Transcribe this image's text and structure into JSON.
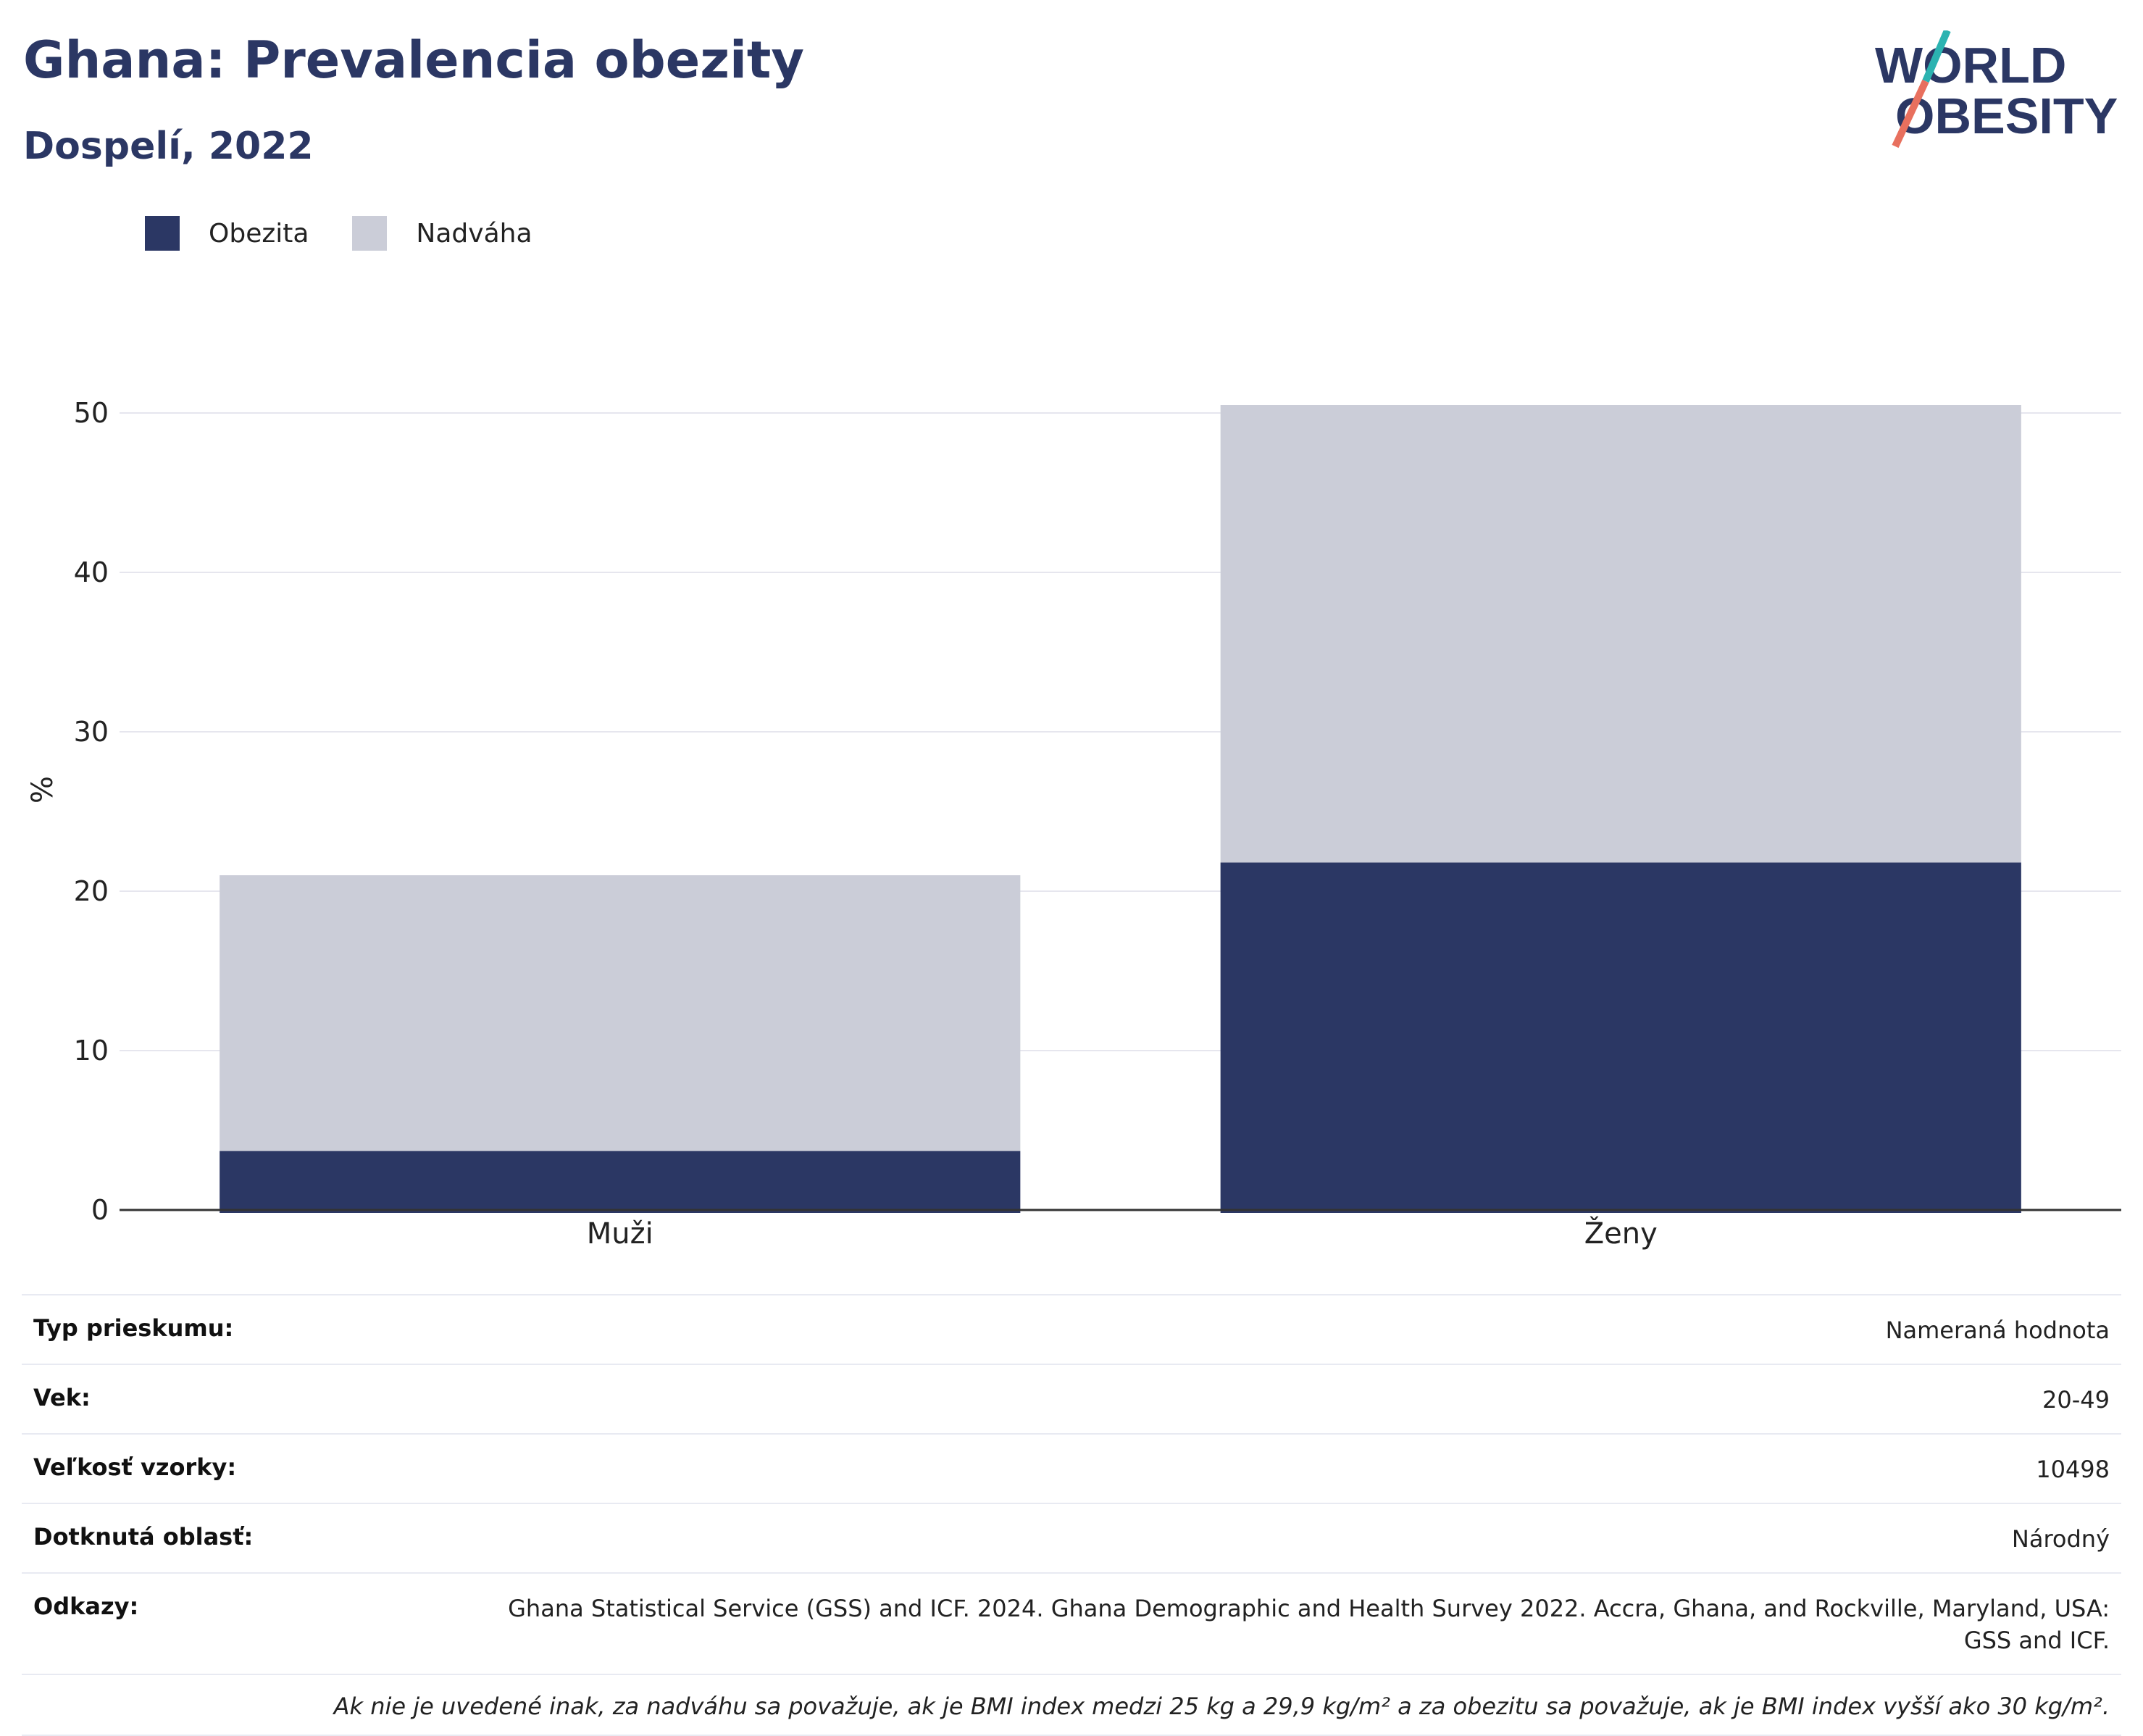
{
  "title": "Ghana: Prevalencia obezity",
  "subtitle": "Dospelí, 2022",
  "logo": {
    "line1": "WORLD",
    "line2": "OBESITY",
    "accent_teal": "#2bb3b1",
    "accent_coral": "#e8705e"
  },
  "colors": {
    "obesity": "#2b3764",
    "overweight": "#cbcdd8",
    "title": "#2b3764",
    "grid": "#e6e6ee",
    "axis": "#333333"
  },
  "chart_data": {
    "type": "bar",
    "stacked": true,
    "categories": [
      "Muži",
      "Ženy"
    ],
    "series": [
      {
        "name": "Obezita",
        "values": [
          3.7,
          21.8
        ]
      },
      {
        "name": "Nadváha",
        "values": [
          17.3,
          28.7
        ]
      }
    ],
    "ylabel": "%",
    "ylim": [
      0,
      50
    ],
    "yticks": [
      0,
      10,
      20,
      30,
      40,
      50
    ],
    "grid": true,
    "legend_position": "top-left"
  },
  "info": [
    {
      "key": "Typ prieskumu:",
      "value": "Nameraná hodnota"
    },
    {
      "key": "Vek:",
      "value": "20-49"
    },
    {
      "key": "Veľkosť vzorky:",
      "value": "10498"
    },
    {
      "key": "Dotknutá oblasť:",
      "value": "Národný"
    },
    {
      "key": "Odkazy:",
      "value": "Ghana Statistical Service (GSS) and ICF. 2024. Ghana Demographic and Health Survey 2022. Accra, Ghana, and Rockville, Maryland, USA: GSS and ICF."
    }
  ],
  "note": "Ak nie je uvedené inak, za nadváhu sa považuje, ak je BMI index medzi 25 kg a 29,9 kg/m² a za obezitu sa považuje, ak je BMI index vyšší ako 30 kg/m²."
}
